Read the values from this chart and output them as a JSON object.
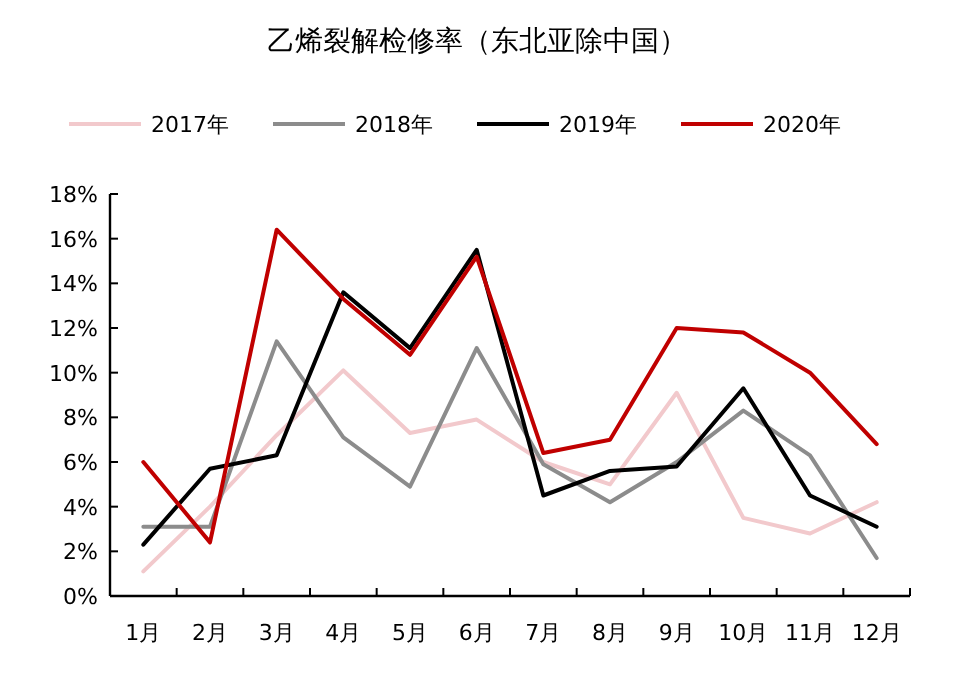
{
  "chart_data": {
    "type": "line",
    "title": "乙烯裂解检修率（东北亚除中国）",
    "categories": [
      "1月",
      "2月",
      "3月",
      "4月",
      "5月",
      "6月",
      "7月",
      "8月",
      "9月",
      "10月",
      "11月",
      "12月"
    ],
    "series": [
      {
        "name": "2017年",
        "color": "#f2c9cc",
        "values": [
          1.1,
          4.0,
          7.2,
          10.1,
          7.3,
          7.9,
          6.0,
          5.0,
          9.1,
          3.5,
          2.8,
          4.2
        ]
      },
      {
        "name": "2018年",
        "color": "#8c8c8c",
        "values": [
          3.1,
          3.1,
          11.4,
          7.1,
          4.9,
          11.1,
          5.9,
          4.2,
          6.0,
          8.3,
          6.3,
          1.7
        ]
      },
      {
        "name": "2019年",
        "color": "#000000",
        "values": [
          2.3,
          5.7,
          6.3,
          13.6,
          11.1,
          15.5,
          4.5,
          5.6,
          5.8,
          9.3,
          4.5,
          3.1
        ]
      },
      {
        "name": "2020年",
        "color": "#c00000",
        "values": [
          6.0,
          2.4,
          16.4,
          13.3,
          10.8,
          15.2,
          6.4,
          7.0,
          12.0,
          11.8,
          10.0,
          6.8
        ]
      }
    ],
    "ylim": [
      0,
      18
    ],
    "yticks": [
      {
        "value": 0,
        "label": "0%"
      },
      {
        "value": 2,
        "label": "2%"
      },
      {
        "value": 4,
        "label": "4%"
      },
      {
        "value": 6,
        "label": "6%"
      },
      {
        "value": 8,
        "label": "8%"
      },
      {
        "value": 10,
        "label": "10%"
      },
      {
        "value": 12,
        "label": "12%"
      },
      {
        "value": 14,
        "label": "14%"
      },
      {
        "value": 16,
        "label": "16%"
      },
      {
        "value": 18,
        "label": "18%"
      }
    ],
    "grid": false,
    "legend": "top",
    "marker": "none",
    "line_style": "solid"
  }
}
